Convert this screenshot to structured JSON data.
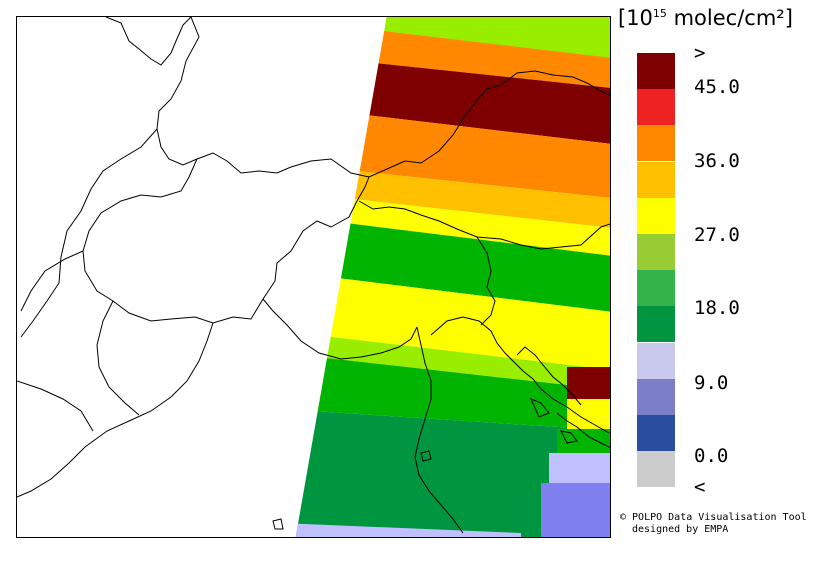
{
  "legend": {
    "unit_prefix": "[10",
    "unit_exp": "15",
    "unit_suffix": " molec/cm²]",
    "colors": [
      "#7f0000",
      "#ee2222",
      "#ff8800",
      "#ffc000",
      "#ffff00",
      "#99cc33",
      "#33b34a",
      "#009640",
      "#c9c9ee",
      "#7b7fc8",
      "#2a4d9e",
      "#cccccc"
    ],
    "ticks": [
      ">",
      "45.0",
      "36.0",
      "27.0",
      "18.0",
      "9.0",
      "0.0",
      "<"
    ]
  },
  "credit": {
    "line1": "© POLPO Data Visualisation Tool",
    "line2": "designed by EMPA"
  }
}
